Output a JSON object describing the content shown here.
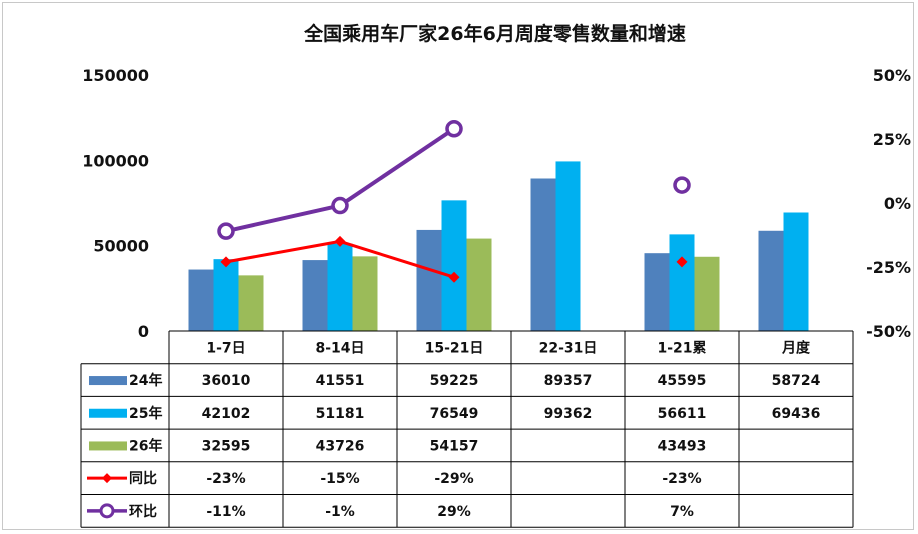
{
  "chart_data": {
    "type": "bar",
    "title": "全国乘用车厂家26年6月周度零售数量和增速",
    "categories": [
      "1-7日",
      "8-14日",
      "15-21日",
      "22-31日",
      "1-21累",
      "月度"
    ],
    "y_left": {
      "ticks": [
        "150000",
        "100000",
        "50000",
        "0"
      ],
      "range": [
        0,
        150000
      ]
    },
    "y_right": {
      "ticks": [
        "50%",
        "25%",
        "0%",
        "-25%",
        "-50%"
      ],
      "range": [
        -50,
        50
      ]
    },
    "grid": false,
    "legend": "table",
    "series": [
      {
        "name": "24年",
        "kind": "bar",
        "color": "#4f81bd",
        "values": [
          36010,
          41551,
          59225,
          89357,
          45595,
          58724
        ],
        "labels": [
          "36010",
          "41551",
          "59225",
          "89357",
          "45595",
          "58724"
        ]
      },
      {
        "name": "25年",
        "kind": "bar",
        "color": "#00b0f0",
        "values": [
          42102,
          51181,
          76549,
          99362,
          56611,
          69436
        ],
        "labels": [
          "42102",
          "51181",
          "76549",
          "99362",
          "56611",
          "69436"
        ]
      },
      {
        "name": "26年",
        "kind": "bar",
        "color": "#9bbb59",
        "values": [
          32595,
          43726,
          54157,
          null,
          43493,
          null
        ],
        "labels": [
          "32595",
          "43726",
          "54157",
          "",
          "43493",
          ""
        ]
      },
      {
        "name": "同比",
        "kind": "line",
        "color": "#ff0000",
        "values": [
          -23,
          -15,
          -29,
          null,
          -23,
          null
        ],
        "labels": [
          "-23%",
          "-15%",
          "-29%",
          "",
          "-23%",
          ""
        ]
      },
      {
        "name": "环比",
        "kind": "line",
        "color": "#7030a0",
        "values": [
          -11,
          -1,
          29,
          null,
          7,
          null
        ],
        "labels": [
          "-11%",
          "-1%",
          "29%",
          "",
          "7%",
          ""
        ]
      }
    ]
  }
}
